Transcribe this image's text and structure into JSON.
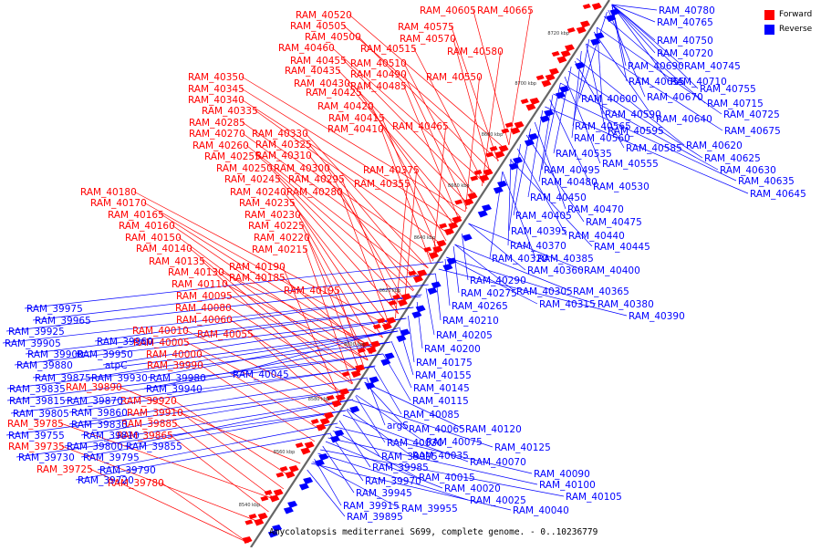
{
  "colors": {
    "forward": "#ff0000",
    "reverse": "#0000ff",
    "axis": "#666666"
  },
  "legend": [
    {
      "label": "Forward",
      "color": "#ff0000"
    },
    {
      "label": "Reverse",
      "color": "#0000ff"
    }
  ],
  "caption": "Amycolatopsis mediterranei S699, complete genome. - 0..10236779",
  "axis_ticks": [
    "8540 kbp",
    "8560 kbp",
    "8580 kbp",
    "8600 kbp",
    "8620 kbp",
    "8640 kbp",
    "8660 kbp",
    "8680 kbp",
    "8700 kbp",
    "8720 kbp"
  ],
  "forward_genes": [
    "RAM_40520",
    "RAM_40605",
    "RAM_40665",
    "RAM_40505",
    "RAM_40575",
    "RAM_40500",
    "RAM_40570",
    "RAM_40460",
    "RAM_40515",
    "RAM_40580",
    "RAM_40455",
    "RAM_40510",
    "RAM_40435",
    "RAM_40490",
    "RAM_40550",
    "RAM_40350",
    "RAM_40430",
    "RAM_40485",
    "RAM_40345",
    "RAM_40425",
    "RAM_40340",
    "RAM_40420",
    "RAM_40335",
    "RAM_40415",
    "RAM_40465",
    "RAM_40285",
    "RAM_40410",
    "RAM_40270",
    "RAM_40330",
    "RAM_40260",
    "RAM_40325",
    "RAM_40255",
    "RAM_40310",
    "RAM_40250",
    "RAM_40300",
    "RAM_40375",
    "RAM_40245",
    "RAM_40295",
    "RAM_40355",
    "RAM_40240",
    "RAM_40280",
    "RAM_40180",
    "RAM_40235",
    "RAM_40170",
    "RAM_40230",
    "RAM_40165",
    "RAM_40225",
    "RAM_40160",
    "RAM_40220",
    "RAM_40150",
    "RAM_40215",
    "RAM_40140",
    "RAM_40135",
    "RAM_40190",
    "RAM_40130",
    "RAM_40185",
    "RAM_40110",
    "RAM_40195",
    "RAM_40095",
    "RAM_40080",
    "RAM_40060",
    "RAM_40010",
    "RAM_40055",
    "RAM_40005",
    "RAM_40000",
    "RAM_39990",
    "RAM_39890",
    "RAM_39920",
    "RAM_39910",
    "RAM_39785",
    "RAM_39885",
    "RAM_39865",
    "RAM_39735",
    "RAM_39725",
    "RAM_39780"
  ],
  "reverse_genes": [
    "RAM_40780",
    "RAM_40765",
    "RAM_40750",
    "RAM_40720",
    "RAM_40690",
    "RAM_40745",
    "RAM_40655",
    "RAM_40710",
    "RAM_40755",
    "RAM_40670",
    "RAM_40600",
    "RAM_40715",
    "RAM_40640",
    "RAM_40725",
    "RAM_40590",
    "RAM_40675",
    "RAM_40565",
    "RAM_40595",
    "RAM_40560",
    "RAM_40620",
    "RAM_40585",
    "RAM_40535",
    "RAM_40625",
    "RAM_40555",
    "RAM_40630",
    "RAM_40495",
    "RAM_40635",
    "RAM_40480",
    "RAM_40530",
    "RAM_40645",
    "RAM_40450",
    "RAM_40470",
    "RAM_40405",
    "RAM_40475",
    "RAM_40395",
    "RAM_40440",
    "RAM_40370",
    "RAM_40445",
    "RAM_40385",
    "RAM_40320",
    "RAM_40360",
    "RAM_40400",
    "RAM_40290",
    "RAM_40275",
    "RAM_40305",
    "RAM_40365",
    "RAM_40265",
    "RAM_40315",
    "RAM_40380",
    "RAM_40390",
    "RAM_40210",
    "RAM_40205",
    "RAM_40200",
    "RAM_40175",
    "RAM_40155",
    "RAM_40145",
    "RAM_40115",
    "RAM_40085",
    "argS",
    "RAM_40065",
    "RAM_40120",
    "RAM_40075",
    "RAM_40030",
    "RAM_40125",
    "RAM_40035",
    "RAM_39995",
    "RAM_40070",
    "RAM_39985",
    "RAM_40090",
    "RAM_40015",
    "RAM_39970",
    "RAM_40100",
    "RAM_40020",
    "RAM_39945",
    "RAM_40105",
    "RAM_40025",
    "RAM_39955",
    "RAM_39915",
    "RAM_40040",
    "RAM_39895",
    "RAM_39975",
    "RAM_39965",
    "RAM_39925",
    "RAM_39960",
    "RAM_39905",
    "RAM_39950",
    "RAM_39900",
    "RAM_39880",
    "atpC",
    "RAM_39930",
    "RAM_39980",
    "RAM_39875",
    "RAM_39940",
    "RAM_39835",
    "RAM_39870",
    "RAM_39815",
    "RAM_39860",
    "RAM_39805",
    "RAM_39830",
    "RAM_39755",
    "RAM_39810",
    "RAM_39800",
    "RAM_39855",
    "RAM_39730",
    "RAM_39795",
    "RAM_39790",
    "RAM_39720",
    "RAM_40045"
  ]
}
